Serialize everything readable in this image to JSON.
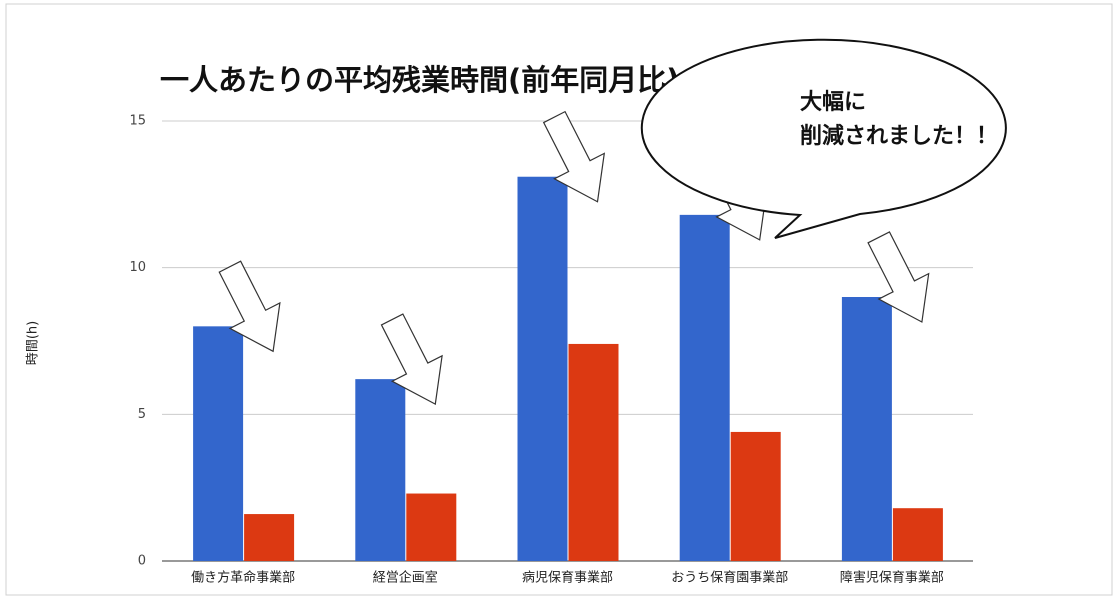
{
  "chart_data": {
    "type": "bar",
    "title": "一人あたりの平均残業時間(前年同月比)",
    "y_label": "時間(h)",
    "categories": [
      "働き方革命事業部",
      "経営企画室",
      "病児保育事業部",
      "おうち保育園事業部",
      "障害児保育事業部"
    ],
    "series": [
      {
        "color": "#3366cc",
        "values": [
          8,
          6.2,
          13.1,
          11.8,
          9
        ]
      },
      {
        "color": "#dc3912",
        "values": [
          1.6,
          2.3,
          7.4,
          4.4,
          1.8
        ]
      }
    ],
    "ylim": [
      0,
      15
    ],
    "yticks": [
      0,
      5,
      10,
      15
    ],
    "grid": true,
    "annotation": [
      "大幅に",
      "削減されました！！"
    ]
  }
}
